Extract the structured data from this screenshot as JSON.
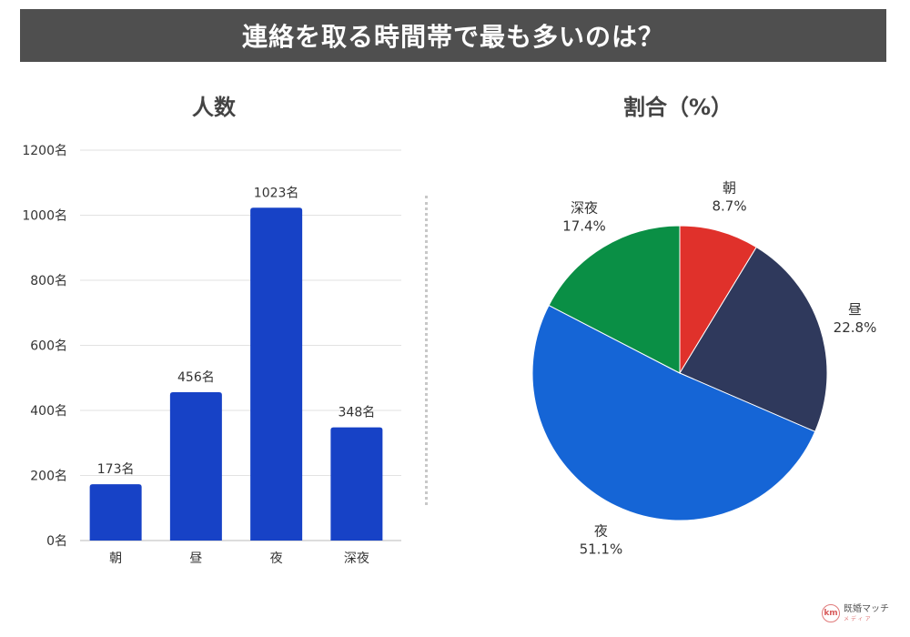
{
  "header": {
    "title": "連絡を取る時間帯で最も多いのは？"
  },
  "colors": {
    "banner": "#4f4f4f",
    "bar": "#1742c6",
    "pie": [
      "#e0312b",
      "#2f395c",
      "#1565d6",
      "#0a8f45"
    ]
  },
  "chart_data": [
    {
      "type": "bar",
      "title": "人数",
      "categories": [
        "朝",
        "昼",
        "夜",
        "深夜"
      ],
      "values": [
        173,
        456,
        1023,
        348
      ],
      "value_labels": [
        "173名",
        "456名",
        "1023名",
        "348名"
      ],
      "ylim": [
        0,
        1200
      ],
      "yticks": [
        0,
        200,
        400,
        600,
        800,
        1000,
        1200
      ],
      "ytick_labels": [
        "0名",
        "200名",
        "400名",
        "600名",
        "800名",
        "1000名",
        "1200名"
      ],
      "grid": true
    },
    {
      "type": "pie",
      "title": "割合（%）",
      "labels": [
        "朝",
        "昼",
        "夜",
        "深夜"
      ],
      "values": [
        8.7,
        22.8,
        51.1,
        17.4
      ],
      "value_labels": [
        "8.7%",
        "22.8%",
        "51.1%",
        "17.4%"
      ]
    }
  ],
  "logo": {
    "text": "既婚マッチ",
    "sub": "メディア",
    "mark": "km"
  }
}
